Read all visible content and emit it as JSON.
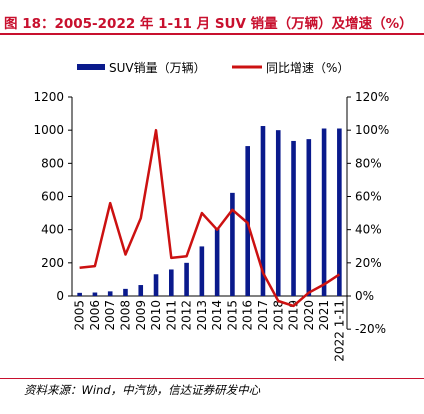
{
  "header": {
    "title": "图 18：2005-2022 年 1-11 月 SUV 销量（万辆）及增速（%）"
  },
  "footer": {
    "source": "资料来源：Wind，中汽协，信达证券研发中心"
  },
  "colors": {
    "bar": "#0a1a8c",
    "line": "#cc1111",
    "accent": "#c8102e"
  },
  "chart_data": {
    "type": "bar+line",
    "categories": [
      "2005",
      "2006",
      "2007",
      "2008",
      "2009",
      "2010",
      "2011",
      "2012",
      "2013",
      "2014",
      "2015",
      "2016",
      "2017",
      "2018",
      "2019",
      "2020",
      "2021",
      "2022 1-11"
    ],
    "series": [
      {
        "name": "SUV销量（万辆）",
        "type": "bar",
        "axis": "left",
        "values": [
          19,
          21,
          28,
          43,
          66,
          131,
          160,
          200,
          299,
          408,
          622,
          904,
          1025,
          1000,
          935,
          946,
          1010,
          1010
        ]
      },
      {
        "name": "同比增速（%）",
        "type": "line",
        "axis": "right",
        "values": [
          17,
          18,
          56,
          25,
          47,
          100,
          23,
          24,
          50,
          40,
          52,
          44,
          14,
          -3,
          -6,
          2,
          7,
          13
        ]
      }
    ],
    "y_left": {
      "ticks": [
        "0",
        "200",
        "400",
        "600",
        "800",
        "1000",
        "1200"
      ],
      "range": [
        0,
        1200
      ]
    },
    "y_right": {
      "ticks": [
        "-20%",
        "0%",
        "20%",
        "40%",
        "60%",
        "80%",
        "100%",
        "120%"
      ],
      "range": [
        -20,
        120
      ]
    },
    "legend": {
      "position": "top"
    },
    "grid": false
  }
}
